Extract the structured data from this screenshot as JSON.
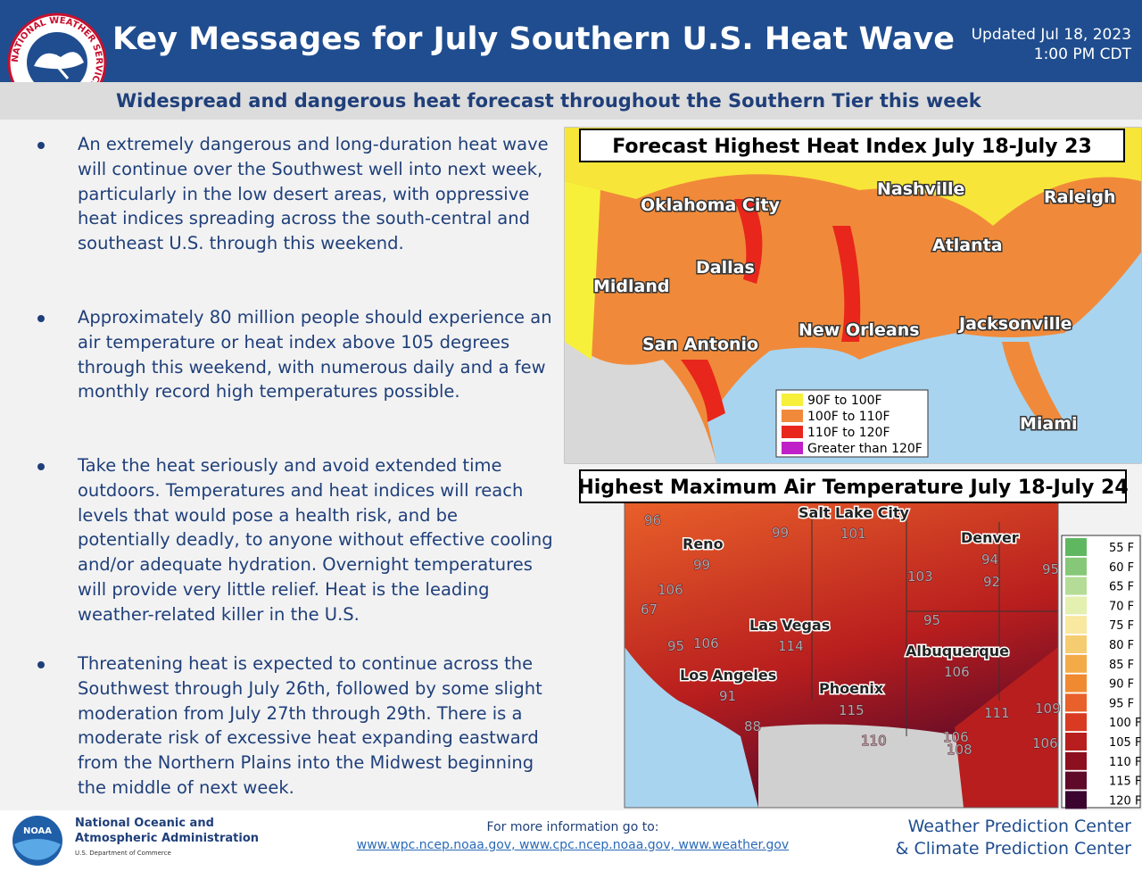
{
  "header": {
    "logo_text": "NATIONAL WEATHER SERVICE",
    "title": "Key Messages for July Southern U.S. Heat Wave",
    "updated_date": "Updated Jul 18, 2023",
    "updated_time": "1:00 PM CDT",
    "subtitle": "Widespread and dangerous heat forecast throughout the Southern Tier this week"
  },
  "bullets": [
    "An extremely dangerous and long-duration heat wave will continue over the Southwest well into next week, particularly in the low desert areas, with oppressive heat indices spreading across the south-central and southeast U.S. through this weekend.",
    "Approximately 80 million people should experience an air temperature or heat index above 105 degrees through this weekend, with numerous daily and a few monthly record high temperatures possible.",
    "Take the heat seriously and avoid extended time outdoors. Temperatures and heat indices will reach levels that would pose a health risk, and be potentially deadly, to anyone without effective cooling and/or adequate hydration. Overnight temperatures will provide very little relief. Heat is the leading weather-related killer in the U.S.",
    "Threatening heat is expected to continue across the Southwest through July 26th, followed by some slight moderation from July 27th through 29th. There is a moderate risk of excessive heat expanding eastward from the Northern Plains into the Midwest beginning the middle of next week."
  ],
  "map1": {
    "title": "Forecast Highest Heat Index July 18-July 23",
    "cities": [
      "Oklahoma City",
      "Nashville",
      "Raleigh",
      "Atlanta",
      "Dallas",
      "Midland",
      "New Orleans",
      "Jacksonville",
      "San Antonio",
      "Miami"
    ],
    "legend": [
      {
        "label": "90F to 100F",
        "color": "#f7f03a"
      },
      {
        "label": "100F to 110F",
        "color": "#f08a3a"
      },
      {
        "label": "110F to 120F",
        "color": "#e8261c"
      },
      {
        "label": "Greater than 120F",
        "color": "#c020c8"
      }
    ]
  },
  "map2": {
    "title": "Highest Maximum Air Temperature July 18-July 24",
    "cities": [
      "Salt Lake City",
      "Reno",
      "Denver",
      "Las Vegas",
      "Albuquerque",
      "Los Angeles",
      "Phoenix"
    ],
    "temps": [
      96,
      99,
      101,
      99,
      94,
      95,
      103,
      92,
      106,
      67,
      95,
      95,
      106,
      114,
      106,
      91,
      115,
      111,
      109,
      88,
      110,
      106,
      108,
      106
    ],
    "legend": [
      {
        "label": "55 F",
        "color": "#5fb860"
      },
      {
        "label": "60 F",
        "color": "#86c878"
      },
      {
        "label": "65 F",
        "color": "#b4dc96"
      },
      {
        "label": "70 F",
        "color": "#e4f0b0"
      },
      {
        "label": "75 F",
        "color": "#f8e8a0"
      },
      {
        "label": "80 F",
        "color": "#f6cc70"
      },
      {
        "label": "85 F",
        "color": "#f3ab48"
      },
      {
        "label": "90 F",
        "color": "#f08a30"
      },
      {
        "label": "95 F",
        "color": "#e8602a"
      },
      {
        "label": "100 F",
        "color": "#d83a22"
      },
      {
        "label": "105 F",
        "color": "#b81e1e"
      },
      {
        "label": "110 F",
        "color": "#8c1020"
      },
      {
        "label": "115 F",
        "color": "#5e0a28"
      },
      {
        "label": "120 F",
        "color": "#3a0630"
      }
    ]
  },
  "footer": {
    "noaa_logo": "NOAA",
    "org_line1": "National Oceanic and",
    "org_line2": "Atmospheric Administration",
    "department": "U.S. Department of Commerce",
    "info": "For more information go to:",
    "links": "www.wpc.ncep.noaa.gov, www.cpc.ncep.noaa.gov, www.weather.gov",
    "center1": "Weather Prediction Center",
    "center2": "& Climate Prediction Center"
  }
}
